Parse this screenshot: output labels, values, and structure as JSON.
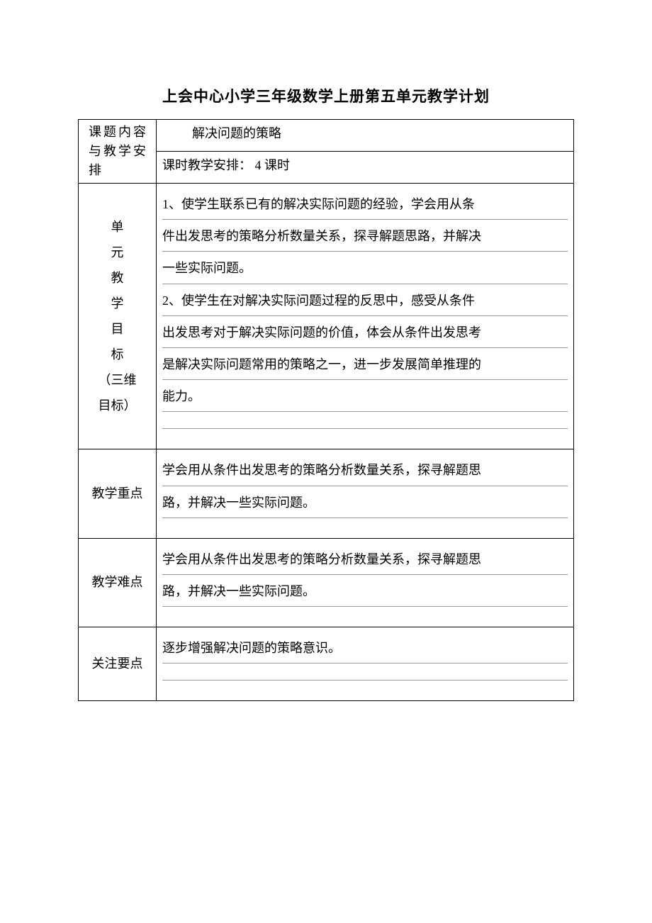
{
  "document": {
    "title": "上会中心小学三年级数学上册第五单元教学计划",
    "background_color": "#ffffff",
    "text_color": "#000000",
    "border_color": "#000000",
    "inner_line_color": "#999999",
    "title_fontsize": 21,
    "body_fontsize": 18
  },
  "sections": {
    "topic": {
      "label": "课题内容与教学安排",
      "subject_title": "解决问题的策略",
      "schedule": "课时教学安排： 4 课时"
    },
    "objectives": {
      "label_lines": [
        "单",
        "元",
        "教",
        "学",
        "目",
        "标",
        "（三维",
        "目标）"
      ],
      "rows": [
        "1、使学生联系已有的解决实际问题的经验，学会用从条",
        "件出发思考的策略分析数量关系，探寻解题思路，并解决",
        "一些实际问题。",
        "2、使学生在对解决实际问题过程的反思中，感受从条件",
        "出发思考对于解决实际问题的价值，体会从条件出发思考",
        "是解决实际问题常用的策略之一，进一步发展简单推理的",
        "能力。"
      ]
    },
    "key_point": {
      "label": "教学重点",
      "rows": [
        "学会用从条件出发思考的策略分析数量关系，探寻解题思",
        "路，并解决一些实际问题。"
      ]
    },
    "difficulty": {
      "label": "教学难点",
      "rows": [
        "学会用从条件出发思考的策略分析数量关系，探寻解题思",
        "路，并解决一些实际问题。"
      ]
    },
    "focus": {
      "label": "关注要点",
      "rows": [
        "逐步增强解决问题的策略意识。"
      ]
    }
  }
}
